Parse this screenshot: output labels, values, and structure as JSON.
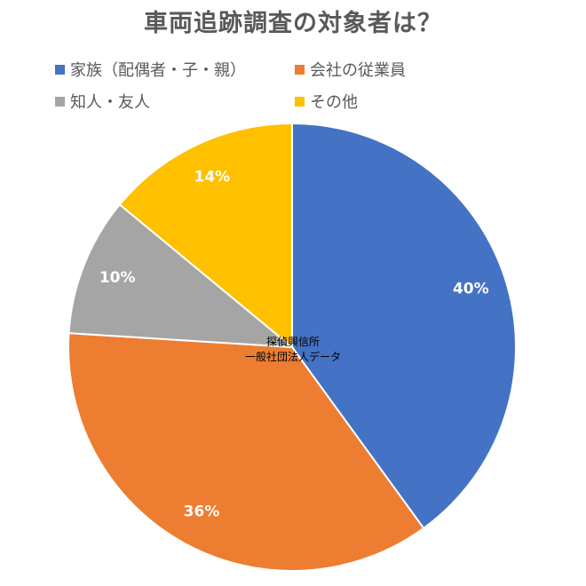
{
  "chart_data": {
    "type": "pie",
    "title": "車両追跡調査の対象者は？",
    "categories": [
      "家族（配偶者・子・親）",
      "会社の従業員",
      "知人・友人",
      "その他"
    ],
    "values": [
      40,
      36,
      10,
      14
    ],
    "data_labels": [
      "40%",
      "36%",
      "10%",
      "14%"
    ],
    "colors": [
      "#4472C4",
      "#ED7D31",
      "#A5A5A5",
      "#FFC000"
    ],
    "start_angle_deg": 0,
    "direction": "clockwise",
    "legend_position": "top"
  },
  "watermark": {
    "line1": "探偵興信所",
    "line2": "一般社団法人データ"
  }
}
